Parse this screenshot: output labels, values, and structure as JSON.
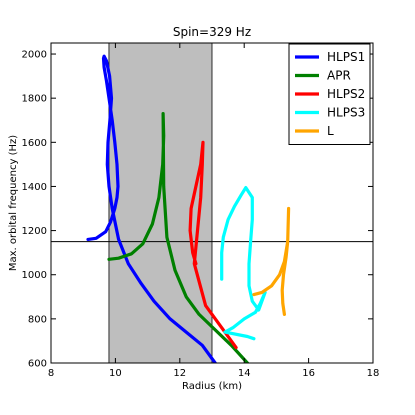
{
  "chart_data": {
    "type": "line",
    "title": "Spin=329 Hz",
    "xlabel": "Radius (km)",
    "ylabel": "Max. orbital frequency (Hz)",
    "xlim": [
      8,
      18
    ],
    "ylim": [
      600,
      2050
    ],
    "xticks": [
      8,
      10,
      12,
      14,
      16,
      18
    ],
    "yticks": [
      600,
      800,
      1000,
      1200,
      1400,
      1600,
      1800,
      2000
    ],
    "grid": false,
    "legend_position": "top-right",
    "shaded_band": {
      "x_from": 9.8,
      "x_to": 13.0,
      "color": "#bebebe"
    },
    "hline": {
      "y": 1150,
      "color": "#000000"
    },
    "series": [
      {
        "name": "HLPS1",
        "color": "#0000ff",
        "x": [
          9.15,
          9.4,
          9.7,
          9.85,
          9.98,
          10.05,
          10.08,
          10.05,
          9.98,
          9.9,
          9.8,
          9.72,
          9.65,
          9.63,
          9.65,
          9.72,
          9.82,
          9.88,
          9.83,
          9.77,
          9.75,
          9.8,
          9.9,
          10.1,
          10.4,
          10.8,
          11.2,
          11.7,
          12.2,
          12.7,
          13.1
        ],
        "y": [
          1160,
          1165,
          1195,
          1240,
          1300,
          1350,
          1400,
          1500,
          1600,
          1700,
          1800,
          1880,
          1940,
          1980,
          1990,
          1970,
          1900,
          1800,
          1700,
          1600,
          1500,
          1400,
          1300,
          1160,
          1050,
          960,
          880,
          800,
          740,
          680,
          600
        ]
      },
      {
        "name": "APR",
        "color": "#008000",
        "x": [
          9.8,
          10.1,
          10.5,
          10.85,
          11.15,
          11.35,
          11.47,
          11.5,
          11.48,
          11.5,
          11.6,
          11.85,
          12.2,
          12.6,
          13.1,
          13.6,
          14.1
        ],
        "y": [
          1070,
          1075,
          1095,
          1140,
          1230,
          1350,
          1500,
          1630,
          1730,
          1400,
          1170,
          1020,
          900,
          820,
          750,
          680,
          600
        ]
      },
      {
        "name": "HLPS2",
        "color": "#ff0000",
        "x": [
          12.5,
          12.4,
          12.32,
          12.35,
          12.5,
          12.65,
          12.7,
          12.72,
          12.7,
          12.65,
          12.55,
          12.45,
          12.8,
          13.3,
          13.75
        ],
        "y": [
          1050,
          1100,
          1200,
          1300,
          1400,
          1500,
          1570,
          1600,
          1500,
          1350,
          1200,
          1050,
          860,
          760,
          670
        ]
      },
      {
        "name": "HLPS3",
        "color": "#00ffff",
        "x": [
          13.3,
          13.3,
          13.35,
          13.5,
          13.7,
          13.9,
          14.05,
          14.25,
          14.25,
          14.2,
          14.15,
          14.15,
          14.25,
          14.45,
          14.65,
          14.5,
          14.35,
          14.0,
          13.65,
          13.4,
          14.1,
          14.3
        ],
        "y": [
          980,
          1100,
          1170,
          1250,
          1310,
          1360,
          1395,
          1350,
          1250,
          1150,
          1050,
          950,
          880,
          840,
          920,
          870,
          830,
          800,
          760,
          740,
          720,
          710
        ]
      },
      {
        "name": "L",
        "color": "#ffa500",
        "x": [
          14.3,
          14.55,
          14.85,
          15.1,
          15.25,
          15.35,
          15.38,
          15.35,
          15.3,
          15.22,
          15.18,
          15.2,
          15.25
        ],
        "y": [
          910,
          920,
          950,
          1000,
          1060,
          1150,
          1300,
          1150,
          1080,
          1000,
          930,
          870,
          820
        ]
      }
    ]
  }
}
